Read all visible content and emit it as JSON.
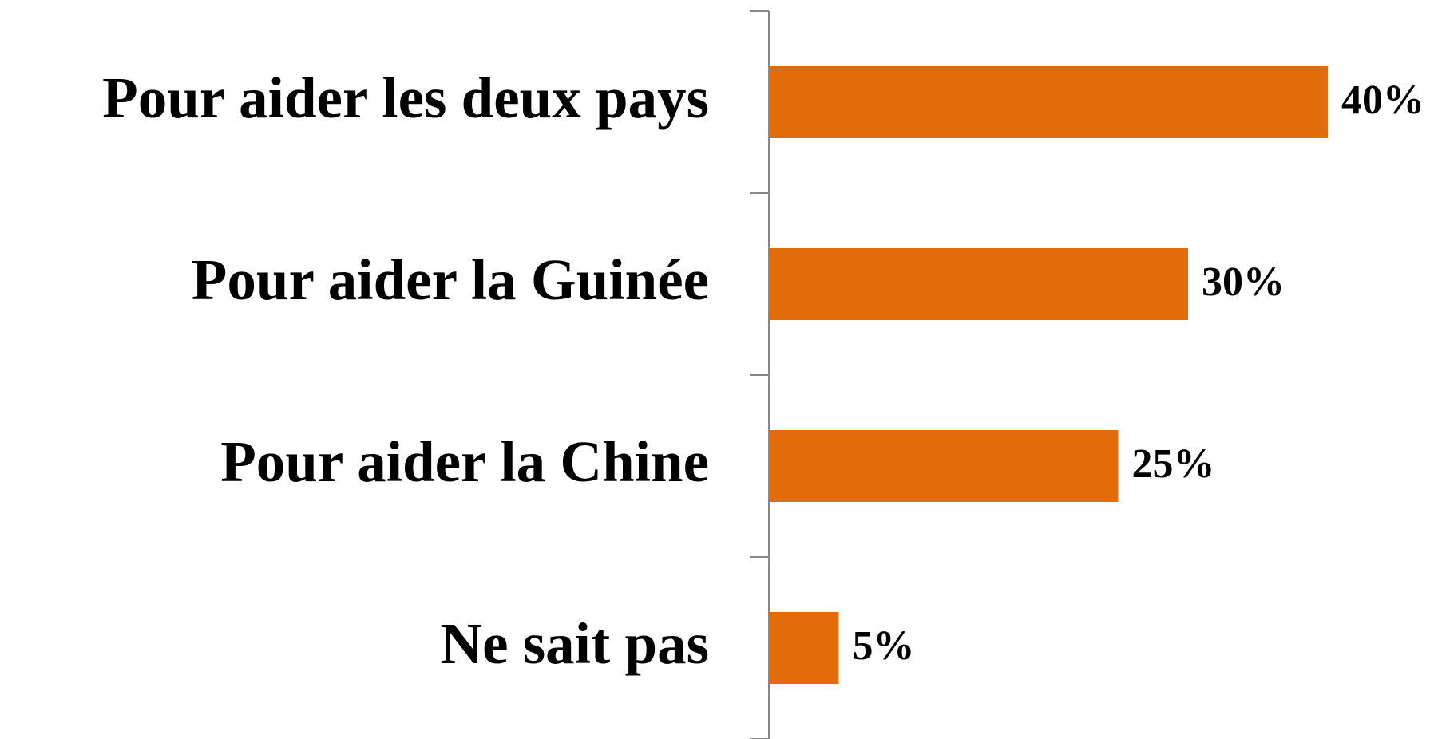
{
  "chart_data": {
    "type": "bar",
    "orientation": "horizontal",
    "categories": [
      "Pour aider les deux pays",
      "Pour aider la Guinée",
      "Pour aider la Chine",
      "Ne sait pas"
    ],
    "values": [
      40,
      30,
      25,
      5
    ],
    "value_labels": [
      "40%",
      "30%",
      "25%",
      "5%"
    ],
    "color": "#e36c0a"
  }
}
